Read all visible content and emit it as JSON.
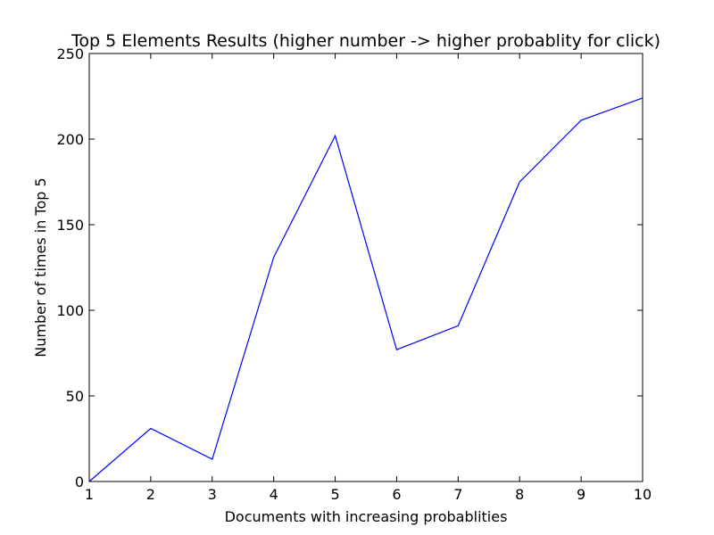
{
  "chart_data": {
    "type": "line",
    "title": "Top 5 Elements Results (higher number -> higher probablity for click)",
    "xlabel": "Documents with increasing probablities",
    "ylabel": "Number of times in Top 5",
    "xlim": [
      1,
      10
    ],
    "ylim": [
      0,
      250
    ],
    "x_ticks": [
      1,
      2,
      3,
      4,
      5,
      6,
      7,
      8,
      9,
      10
    ],
    "y_ticks": [
      0,
      50,
      100,
      150,
      200,
      250
    ],
    "grid": false,
    "series": [
      {
        "color": "#0000ff",
        "x": [
          1,
          2,
          3,
          4,
          5,
          6,
          7,
          8,
          9,
          10
        ],
        "y": [
          0,
          31,
          13,
          131,
          202,
          77,
          91,
          175,
          211,
          224
        ]
      }
    ]
  }
}
